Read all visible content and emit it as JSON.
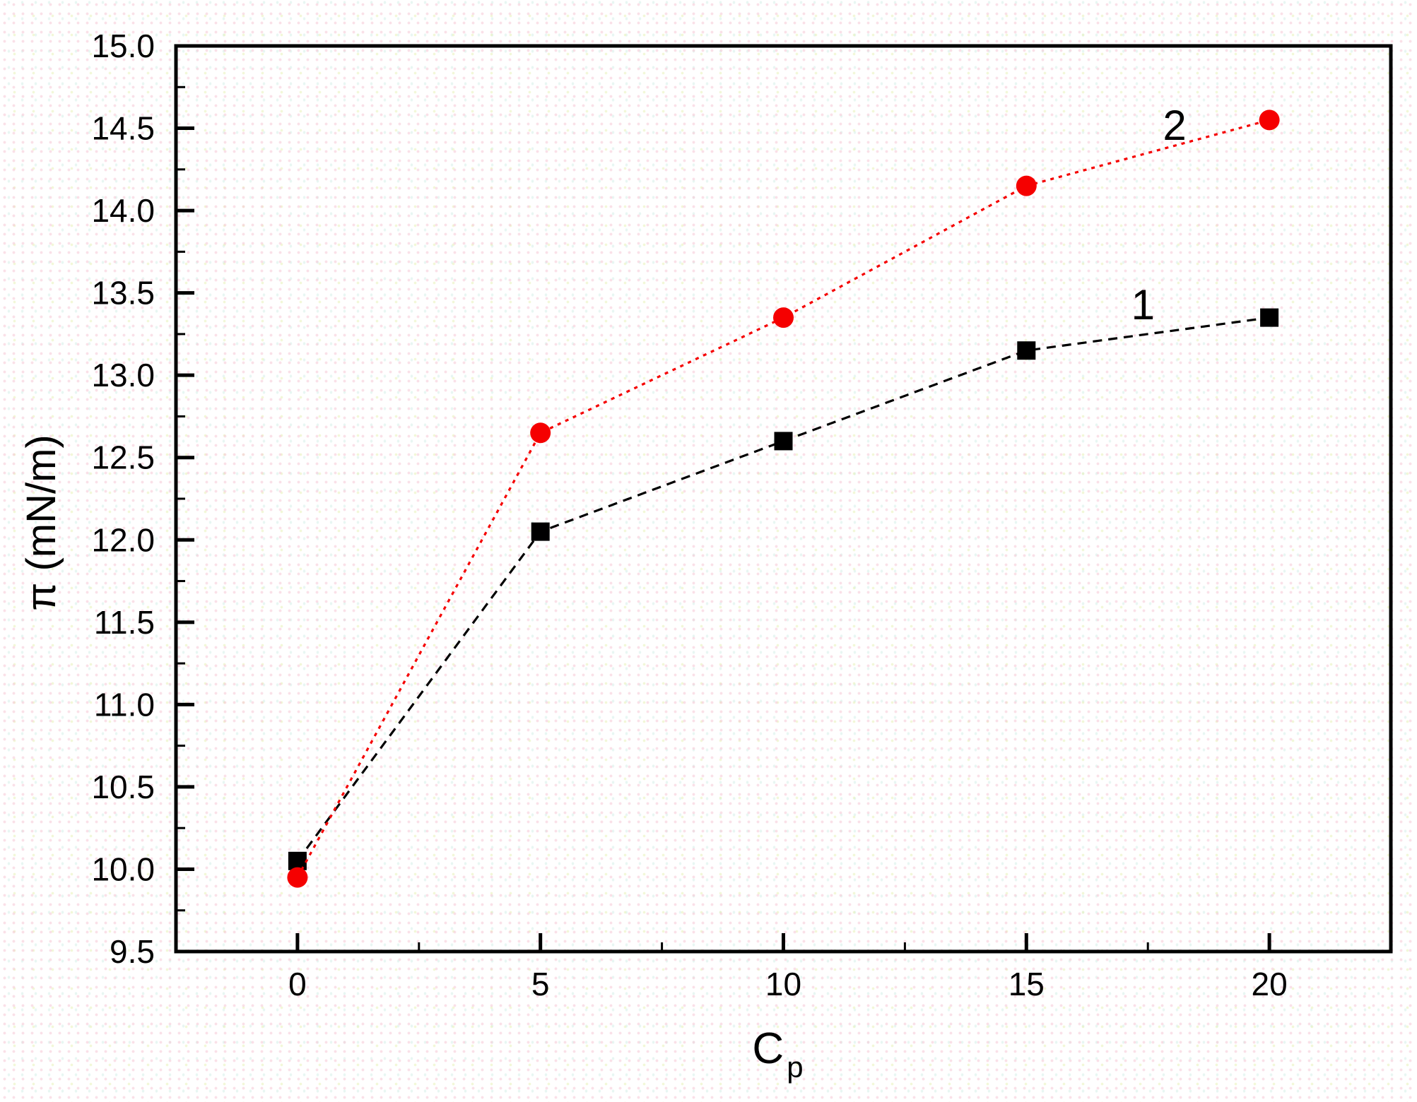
{
  "figure": {
    "xlabel_main": "C",
    "xlabel_sub": "p",
    "ylabel": "π (mN/m)"
  },
  "chart_data": {
    "type": "line",
    "title": "",
    "xlabel": "Cp",
    "ylabel": "π (mN/m)",
    "x": [
      0,
      5,
      10,
      15,
      20
    ],
    "series": [
      {
        "name": "1",
        "marker": "square",
        "color": "#000000",
        "line_style": "dashed",
        "values": [
          10.05,
          12.05,
          12.6,
          13.15,
          13.35
        ]
      },
      {
        "name": "2",
        "marker": "circle",
        "color": "#f50000",
        "line_style": "dotted",
        "values": [
          9.95,
          12.65,
          13.35,
          14.15,
          14.55
        ]
      }
    ],
    "annotations": [
      {
        "text": "1",
        "x": 17.4,
        "y": 13.43,
        "color": "#000000"
      },
      {
        "text": "2",
        "x": 18.05,
        "y": 14.52,
        "color": "#000000"
      }
    ],
    "xlim": [
      -2.5,
      22.5
    ],
    "ylim": [
      9.5,
      15.0
    ],
    "x_major_ticks": [
      0,
      5,
      10,
      15,
      20
    ],
    "x_minor_ticks": [
      2.5,
      7.5,
      12.5,
      17.5
    ],
    "y_tick_start": 9.5,
    "y_tick_end": 15.0,
    "y_major_step": 0.5,
    "y_minor_step": 0.25,
    "y_tick_decimals": 1,
    "grid": false,
    "legend_position": "none (series labeled inline with numbers)"
  }
}
